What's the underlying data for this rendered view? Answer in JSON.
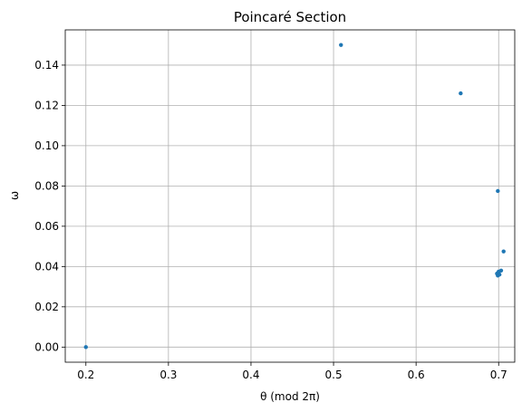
{
  "chart_data": {
    "type": "scatter",
    "title": "Poincaré Section",
    "xlabel": "θ (mod 2π)",
    "ylabel": "ω",
    "xlim": [
      0.175,
      0.7195
    ],
    "ylim": [
      -0.0075,
      0.1575
    ],
    "x_ticks": [
      "0.2",
      "0.3",
      "0.4",
      "0.5",
      "0.6",
      "0.7"
    ],
    "y_ticks": [
      "0.00",
      "0.02",
      "0.04",
      "0.06",
      "0.08",
      "0.10",
      "0.12",
      "0.14"
    ],
    "grid": true,
    "marker_color": "#1f77b4",
    "series": [
      {
        "x": [
          0.2,
          0.509,
          0.654,
          0.699,
          0.706,
          0.703,
          0.7,
          0.698,
          0.701,
          0.699,
          0.7
        ],
        "y": [
          0.0,
          0.15,
          0.126,
          0.0775,
          0.0475,
          0.038,
          0.037,
          0.0365,
          0.036,
          0.0355,
          0.0375
        ]
      }
    ]
  }
}
